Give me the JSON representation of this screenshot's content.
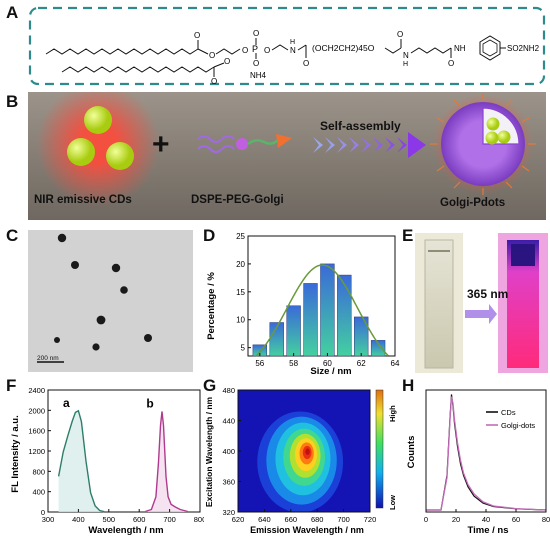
{
  "panels": {
    "A": "A",
    "B": "B",
    "C": "C",
    "D": "D",
    "E": "E",
    "F": "F",
    "G": "G",
    "H": "H"
  },
  "panel_a": {
    "formula_peg": "(OCH2CH2)45O",
    "nh4": "NH4",
    "nh_amide": "NH",
    "so2nh2": "SO2NH2",
    "p_symbol": "P",
    "o_symbol": "O",
    "n_symbol": "N",
    "h_symbol": "H"
  },
  "panel_b": {
    "label_cds": "NIR emissive CDs",
    "label_plus": "+",
    "label_dspe": "DSPE-PEG-Golgi",
    "label_self_assembly": "Self-assembly",
    "label_pdots": "Golgi-Pdots",
    "colors": {
      "bg": "#8c847a",
      "cd": "#c8e63c",
      "halo": "#e8403a",
      "arrow": "#8a4cf0",
      "shell": "#9a5bd8"
    }
  },
  "panel_c": {
    "scale_bar_label": "200 nm"
  },
  "panel_e": {
    "uv_label": "365 nm"
  },
  "chart_data": [
    {
      "id": "D",
      "type": "bar",
      "categories": [
        56,
        57,
        58,
        59,
        60,
        61,
        62,
        63
      ],
      "values": [
        5.5,
        9.5,
        12.5,
        16.5,
        20.0,
        18.0,
        10.5,
        6.3
      ],
      "fit_curve": "gaussian",
      "xlabel": "Size / nm",
      "ylabel": "Percentage / %",
      "xticks": [
        56,
        58,
        60,
        62,
        64
      ],
      "yticks": [
        5,
        10,
        15,
        20,
        25
      ],
      "xlim": [
        55.3,
        64
      ],
      "ylim": [
        3.5,
        25
      ]
    },
    {
      "id": "F",
      "type": "line",
      "xlabel": "Wavelength / nm",
      "ylabel": "FL Intensity / a.u.",
      "xticks": [
        300,
        400,
        500,
        600,
        700,
        800
      ],
      "yticks": [
        0,
        400,
        800,
        1200,
        1600,
        2000,
        2400
      ],
      "xlim": [
        300,
        800
      ],
      "ylim": [
        0,
        2400
      ],
      "series": [
        {
          "name": "a",
          "color": "#2e7d6a",
          "x": [
            335,
            350,
            365,
            380,
            390,
            400,
            410,
            425,
            440,
            455,
            470,
            485
          ],
          "y": [
            700,
            1180,
            1500,
            1790,
            1960,
            1990,
            1780,
            1000,
            380,
            120,
            30,
            5
          ]
        },
        {
          "name": "b",
          "color": "#b03a8c",
          "x": [
            620,
            640,
            655,
            663,
            670,
            675,
            680,
            688,
            695,
            705,
            718,
            735,
            760
          ],
          "y": [
            10,
            50,
            300,
            950,
            1700,
            1980,
            1700,
            700,
            300,
            150,
            100,
            50,
            10
          ]
        }
      ]
    },
    {
      "id": "G",
      "type": "heatmap",
      "xlabel": "Emission Wavelength / nm",
      "ylabel": "Excitation Wavelength / nm",
      "xticks": [
        620,
        640,
        660,
        680,
        700,
        720
      ],
      "yticks": [
        320,
        360,
        400,
        440,
        480
      ],
      "xlim": [
        620,
        720
      ],
      "ylim": [
        320,
        480
      ],
      "peak": {
        "emission": 673,
        "excitation": 400
      },
      "colorbar": {
        "high": "High",
        "low": "Low"
      }
    },
    {
      "id": "H",
      "type": "line",
      "xlabel": "Time / ns",
      "ylabel": "Counts",
      "xticks": [
        0,
        20,
        40,
        60,
        80
      ],
      "xlim": [
        0,
        80
      ],
      "series": [
        {
          "name": "CDs",
          "color": "#111111",
          "x": [
            0,
            10,
            14,
            16,
            17,
            18,
            19,
            21,
            23,
            25,
            28,
            32,
            38,
            45,
            60,
            80
          ],
          "y": [
            0,
            0,
            0.3,
            0.8,
            1.0,
            0.9,
            0.75,
            0.55,
            0.4,
            0.3,
            0.2,
            0.12,
            0.06,
            0.03,
            0.01,
            0.0
          ]
        },
        {
          "name": "Golgi-dots",
          "color": "#c46bb8",
          "x": [
            0,
            10,
            14,
            16,
            17,
            18,
            19,
            21,
            23,
            25,
            28,
            32,
            38,
            45,
            60,
            80
          ],
          "y": [
            0,
            0,
            0.28,
            0.78,
            0.98,
            0.92,
            0.78,
            0.58,
            0.43,
            0.32,
            0.22,
            0.14,
            0.07,
            0.035,
            0.012,
            0.0
          ]
        }
      ]
    }
  ]
}
